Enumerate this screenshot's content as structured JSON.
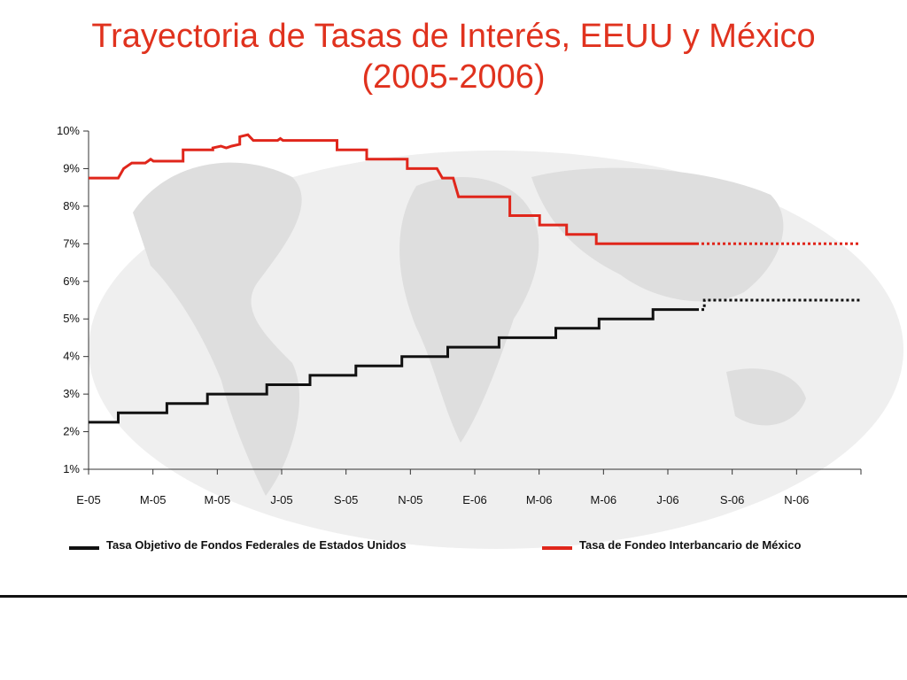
{
  "title_line1": "Trayectoria de Tasas de Interés, EEUU y México",
  "title_line2": "(2005-2006)",
  "colors": {
    "title": "#e0321e",
    "mexico": "#e0261b",
    "us": "#111111",
    "map": "#e6e6e6"
  },
  "chart_data": {
    "type": "line",
    "title": "Trayectoria de Tasas de Interés, EEUU y México (2005-2006)",
    "xlabel": "",
    "ylabel": "",
    "xlim": [
      0,
      24
    ],
    "ylim": [
      1,
      10
    ],
    "x_ticks": [
      "E-05",
      "M-05",
      "M-05",
      "J-05",
      "S-05",
      "N-05",
      "E-06",
      "M-06",
      "M-06",
      "J-06",
      "S-06",
      "N-06"
    ],
    "y_ticks": [
      "1%",
      "2%",
      "3%",
      "4%",
      "5%",
      "6%",
      "7%",
      "8%",
      "9%",
      "10%"
    ],
    "y_tick_values": [
      1,
      2,
      3,
      4,
      5,
      6,
      7,
      8,
      9,
      10
    ],
    "grid": false,
    "legend_position": "bottom",
    "series": [
      {
        "name": "Tasa Objetivo de Fondos Federales de Estados Unidos",
        "color": "#111111",
        "points": [
          [
            0,
            2.25
          ],
          [
            1.1,
            2.25
          ],
          [
            1.1,
            2.5
          ],
          [
            2.9,
            2.5
          ],
          [
            2.9,
            2.75
          ],
          [
            4.4,
            2.75
          ],
          [
            4.4,
            3.0
          ],
          [
            6.6,
            3.0
          ],
          [
            6.6,
            3.25
          ],
          [
            8.2,
            3.25
          ],
          [
            8.2,
            3.5
          ],
          [
            9.9,
            3.5
          ],
          [
            9.9,
            3.75
          ],
          [
            11.6,
            3.75
          ],
          [
            11.6,
            4.0
          ],
          [
            13.3,
            4.0
          ],
          [
            13.3,
            4.25
          ],
          [
            15.2,
            4.25
          ],
          [
            15.2,
            4.5
          ],
          [
            17.3,
            4.5
          ],
          [
            17.3,
            4.75
          ],
          [
            18.9,
            4.75
          ],
          [
            18.9,
            5.0
          ],
          [
            20.9,
            5.0
          ],
          [
            20.9,
            5.25
          ],
          [
            22.5,
            5.25
          ]
        ],
        "projection": [
          [
            22.5,
            5.25
          ],
          [
            22.8,
            5.25
          ],
          [
            22.8,
            5.5
          ],
          [
            28.6,
            5.5
          ]
        ]
      },
      {
        "name": "Tasa de Fondeo Interbancario de México",
        "color": "#e0261b",
        "points": [
          [
            0,
            8.75
          ],
          [
            1.1,
            8.75
          ],
          [
            1.3,
            9.0
          ],
          [
            1.5,
            9.1
          ],
          [
            1.6,
            9.15
          ],
          [
            2.1,
            9.15
          ],
          [
            2.2,
            9.2
          ],
          [
            2.3,
            9.25
          ],
          [
            2.4,
            9.2
          ],
          [
            3.5,
            9.2
          ],
          [
            3.5,
            9.5
          ],
          [
            4.6,
            9.5
          ],
          [
            4.6,
            9.55
          ],
          [
            4.9,
            9.6
          ],
          [
            5.1,
            9.55
          ],
          [
            5.3,
            9.6
          ],
          [
            5.6,
            9.65
          ],
          [
            5.6,
            9.85
          ],
          [
            5.9,
            9.9
          ],
          [
            6.1,
            9.75
          ],
          [
            7.0,
            9.75
          ],
          [
            7.1,
            9.8
          ],
          [
            7.2,
            9.75
          ],
          [
            9.2,
            9.75
          ],
          [
            9.2,
            9.5
          ],
          [
            10.3,
            9.5
          ],
          [
            10.3,
            9.25
          ],
          [
            11.8,
            9.25
          ],
          [
            11.8,
            9.0
          ],
          [
            12.9,
            9.0
          ],
          [
            13.1,
            8.75
          ],
          [
            13.5,
            8.75
          ],
          [
            13.7,
            8.25
          ],
          [
            15.6,
            8.25
          ],
          [
            15.6,
            7.75
          ],
          [
            16.7,
            7.75
          ],
          [
            16.7,
            7.5
          ],
          [
            17.7,
            7.5
          ],
          [
            17.7,
            7.25
          ],
          [
            18.8,
            7.25
          ],
          [
            18.8,
            7.0
          ],
          [
            22.5,
            7.0
          ]
        ],
        "projection": [
          [
            22.5,
            7.0
          ],
          [
            28.6,
            7.0
          ]
        ]
      }
    ]
  }
}
